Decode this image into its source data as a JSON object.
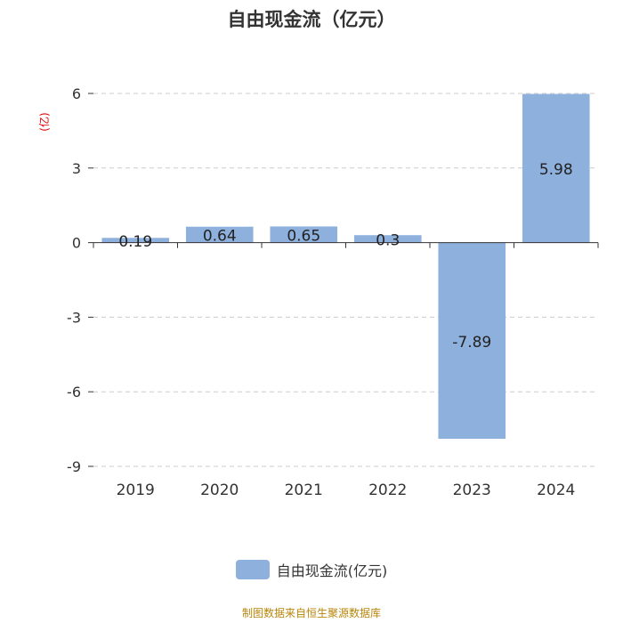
{
  "chart_data": {
    "type": "bar",
    "title": "自由现金流（亿元）",
    "ylabel": "(亿)",
    "categories": [
      "2019",
      "2020",
      "2021",
      "2022",
      "2023",
      "2024"
    ],
    "series": [
      {
        "name": "自由现金流(亿元)",
        "values": [
          0.19,
          0.64,
          0.65,
          0.3,
          -7.89,
          5.98
        ]
      }
    ],
    "data_labels": [
      "0.19",
      "0.64",
      "0.65",
      "0.3",
      "-7.89",
      "5.98"
    ],
    "yticks": [
      6,
      3,
      0,
      -3,
      -6,
      -9
    ],
    "ylim": [
      -9,
      6
    ],
    "grid": true,
    "legend": "bottom"
  },
  "colors": {
    "bar": "#8eb0dd",
    "ylabel": "#e60000",
    "source": "#b8860b"
  },
  "source": "制图数据来自恒生聚源数据库"
}
